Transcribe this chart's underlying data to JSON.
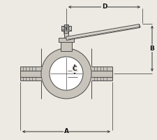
{
  "bg_color": "#ede9e3",
  "line_color": "#4a4a4a",
  "fill_color": "#c8c4bc",
  "fill_light": "#d8d4cc",
  "dim_color": "#333333",
  "white": "#ffffff",
  "label_A": "A",
  "label_B": "B",
  "label_C": "C",
  "label_D": "D",
  "figsize": [
    2.26,
    2.0
  ],
  "dpi": 100
}
